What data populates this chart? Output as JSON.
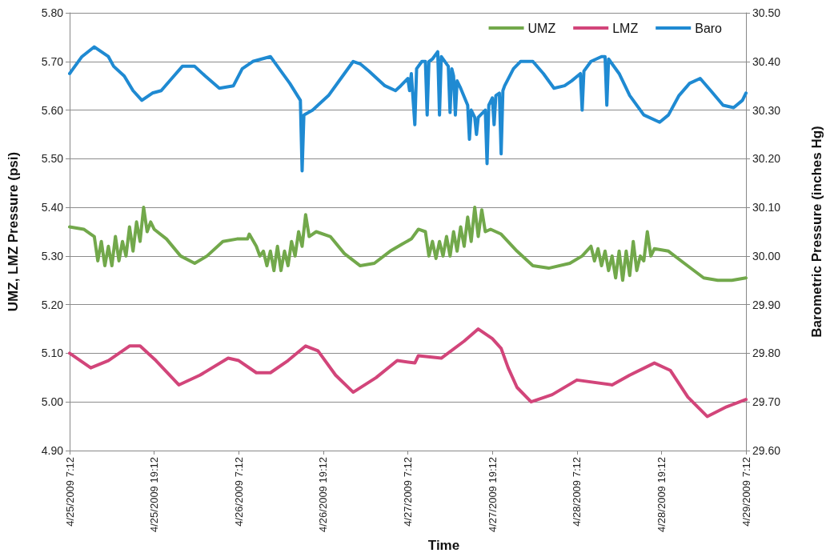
{
  "chart_data": {
    "type": "line",
    "xlabel": "Time",
    "ylabel": "UMZ, LMZ Pressure (psi)",
    "y2label": "Barometric Pressure (inches Hg)",
    "xlim": [
      "2009-04-25T07:12",
      "2009-04-29T07:12"
    ],
    "xticks": [
      {
        "value": "2009-04-25T07:12",
        "label": "4/25/2009 7:12"
      },
      {
        "value": "2009-04-25T19:12",
        "label": "4/25/2009 19:12"
      },
      {
        "value": "2009-04-26T07:12",
        "label": "4/26/2009 7:12"
      },
      {
        "value": "2009-04-26T19:12",
        "label": "4/26/2009 19:12"
      },
      {
        "value": "2009-04-27T07:12",
        "label": "4/27/2009 7:12"
      },
      {
        "value": "2009-04-27T19:12",
        "label": "4/27/2009 19:12"
      },
      {
        "value": "2009-04-28T07:12",
        "label": "4/28/2009 7:12"
      },
      {
        "value": "2009-04-28T19:12",
        "label": "4/28/2009 19:12"
      },
      {
        "value": "2009-04-29T07:12",
        "label": "4/29/2009 7:12"
      }
    ],
    "ylim": [
      4.9,
      5.8
    ],
    "yticks": [
      {
        "value": 4.9,
        "label": "4.90"
      },
      {
        "value": 5.0,
        "label": "5.00"
      },
      {
        "value": 5.1,
        "label": "5.10"
      },
      {
        "value": 5.2,
        "label": "5.20"
      },
      {
        "value": 5.3,
        "label": "5.30"
      },
      {
        "value": 5.4,
        "label": "5.40"
      },
      {
        "value": 5.5,
        "label": "5.50"
      },
      {
        "value": 5.6,
        "label": "5.60"
      },
      {
        "value": 5.7,
        "label": "5.70"
      },
      {
        "value": 5.8,
        "label": "5.80"
      }
    ],
    "y2lim": [
      29.6,
      30.5
    ],
    "y2ticks": [
      {
        "value": 29.6,
        "label": "29.60"
      },
      {
        "value": 29.7,
        "label": "29.70"
      },
      {
        "value": 29.8,
        "label": "29.80"
      },
      {
        "value": 29.9,
        "label": "29.90"
      },
      {
        "value": 30.0,
        "label": "30.00"
      },
      {
        "value": 30.1,
        "label": "30.10"
      },
      {
        "value": 30.2,
        "label": "30.20"
      },
      {
        "value": 30.3,
        "label": "30.30"
      },
      {
        "value": 30.4,
        "label": "30.40"
      },
      {
        "value": 30.5,
        "label": "30.50"
      }
    ],
    "grid": "y",
    "legend": "top right",
    "marker": "none",
    "line_style": "solid",
    "series": [
      {
        "name": "UMZ",
        "color": "#72a84b",
        "x": [
          "2009-04-25T07:12",
          "2009-04-25T09:12",
          "2009-04-25T10:12",
          "2009-04-25T10:42",
          "2009-04-25T11:12",
          "2009-04-25T11:42",
          "2009-04-25T12:12",
          "2009-04-25T12:42",
          "2009-04-25T13:12",
          "2009-04-25T13:42",
          "2009-04-25T14:12",
          "2009-04-25T14:42",
          "2009-04-25T15:12",
          "2009-04-25T15:42",
          "2009-04-25T16:12",
          "2009-04-25T16:42",
          "2009-04-25T17:12",
          "2009-04-25T17:42",
          "2009-04-25T18:12",
          "2009-04-25T18:42",
          "2009-04-25T19:12",
          "2009-04-25T20:57",
          "2009-04-25T22:57",
          "2009-04-26T00:57",
          "2009-04-26T02:42",
          "2009-04-26T04:57",
          "2009-04-26T06:57",
          "2009-04-26T08:27",
          "2009-04-26T08:42",
          "2009-04-26T09:42",
          "2009-04-26T10:12",
          "2009-04-26T10:42",
          "2009-04-26T11:12",
          "2009-04-26T11:42",
          "2009-04-26T12:12",
          "2009-04-26T12:42",
          "2009-04-26T13:12",
          "2009-04-26T13:42",
          "2009-04-26T14:12",
          "2009-04-26T14:42",
          "2009-04-26T15:12",
          "2009-04-26T15:42",
          "2009-04-26T16:12",
          "2009-04-26T16:42",
          "2009-04-26T17:12",
          "2009-04-26T18:12",
          "2009-04-26T20:12",
          "2009-04-26T22:12",
          "2009-04-27T00:27",
          "2009-04-27T02:27",
          "2009-04-27T04:42",
          "2009-04-27T06:27",
          "2009-04-27T07:42",
          "2009-04-27T08:42",
          "2009-04-27T09:42",
          "2009-04-27T10:12",
          "2009-04-27T10:42",
          "2009-04-27T11:12",
          "2009-04-27T11:42",
          "2009-04-27T12:12",
          "2009-04-27T12:42",
          "2009-04-27T13:12",
          "2009-04-27T13:42",
          "2009-04-27T14:12",
          "2009-04-27T14:42",
          "2009-04-27T15:12",
          "2009-04-27T15:42",
          "2009-04-27T16:12",
          "2009-04-27T16:42",
          "2009-04-27T17:12",
          "2009-04-27T17:42",
          "2009-04-27T18:12",
          "2009-04-27T18:57",
          "2009-04-27T20:27",
          "2009-04-27T22:42",
          "2009-04-28T00:57",
          "2009-04-28T03:12",
          "2009-04-28T06:12",
          "2009-04-28T07:57",
          "2009-04-28T09:12",
          "2009-04-28T09:42",
          "2009-04-28T10:12",
          "2009-04-28T10:42",
          "2009-04-28T11:12",
          "2009-04-28T11:42",
          "2009-04-28T12:12",
          "2009-04-28T12:42",
          "2009-04-28T13:12",
          "2009-04-28T13:42",
          "2009-04-28T14:12",
          "2009-04-28T14:42",
          "2009-04-28T15:12",
          "2009-04-28T15:42",
          "2009-04-28T16:12",
          "2009-04-28T16:42",
          "2009-04-28T17:12",
          "2009-04-28T17:42",
          "2009-04-28T18:12",
          "2009-04-28T20:12",
          "2009-04-28T22:27",
          "2009-04-29T01:12",
          "2009-04-29T03:12",
          "2009-04-29T05:12",
          "2009-04-29T07:12"
        ],
        "values": [
          5.36,
          5.355,
          5.345,
          5.34,
          5.29,
          5.33,
          5.28,
          5.32,
          5.28,
          5.34,
          5.29,
          5.33,
          5.3,
          5.36,
          5.31,
          5.37,
          5.33,
          5.4,
          5.35,
          5.37,
          5.355,
          5.335,
          5.3,
          5.285,
          5.3,
          5.33,
          5.335,
          5.335,
          5.345,
          5.32,
          5.3,
          5.31,
          5.28,
          5.31,
          5.27,
          5.32,
          5.27,
          5.31,
          5.28,
          5.33,
          5.3,
          5.35,
          5.32,
          5.385,
          5.34,
          5.35,
          5.34,
          5.305,
          5.28,
          5.285,
          5.31,
          5.325,
          5.335,
          5.355,
          5.35,
          5.3,
          5.33,
          5.295,
          5.33,
          5.3,
          5.34,
          5.3,
          5.35,
          5.31,
          5.36,
          5.32,
          5.38,
          5.33,
          5.4,
          5.34,
          5.395,
          5.35,
          5.355,
          5.345,
          5.31,
          5.28,
          5.275,
          5.285,
          5.3,
          5.32,
          5.29,
          5.315,
          5.28,
          5.31,
          5.27,
          5.3,
          5.255,
          5.31,
          5.25,
          5.31,
          5.26,
          5.33,
          5.27,
          5.3,
          5.29,
          5.35,
          5.3,
          5.315,
          5.31,
          5.285,
          5.255,
          5.25,
          5.25,
          5.255
        ]
      },
      {
        "name": "LMZ",
        "color": "#d2457a",
        "x": [
          "2009-04-25T07:12",
          "2009-04-25T10:12",
          "2009-04-25T12:42",
          "2009-04-25T15:42",
          "2009-04-25T17:12",
          "2009-04-25T19:27",
          "2009-04-25T22:42",
          "2009-04-26T01:42",
          "2009-04-26T05:42",
          "2009-04-26T07:12",
          "2009-04-26T09:42",
          "2009-04-26T11:42",
          "2009-04-26T14:12",
          "2009-04-26T16:42",
          "2009-04-26T18:27",
          "2009-04-26T20:57",
          "2009-04-26T23:27",
          "2009-04-27T02:42",
          "2009-04-27T05:42",
          "2009-04-27T08:12",
          "2009-04-27T08:42",
          "2009-04-27T11:57",
          "2009-04-27T15:12",
          "2009-04-27T17:12",
          "2009-04-27T19:12",
          "2009-04-27T20:27",
          "2009-04-27T21:27",
          "2009-04-27T22:42",
          "2009-04-28T00:42",
          "2009-04-28T03:42",
          "2009-04-28T07:12",
          "2009-04-28T12:12",
          "2009-04-28T14:42",
          "2009-04-28T18:12",
          "2009-04-28T20:27",
          "2009-04-28T22:57",
          "2009-04-29T01:42",
          "2009-04-29T04:27",
          "2009-04-29T07:12"
        ],
        "values": [
          5.1,
          5.07,
          5.085,
          5.115,
          5.115,
          5.085,
          5.035,
          5.055,
          5.09,
          5.085,
          5.06,
          5.06,
          5.085,
          5.115,
          5.105,
          5.055,
          5.02,
          5.05,
          5.085,
          5.08,
          5.095,
          5.09,
          5.125,
          5.15,
          5.13,
          5.11,
          5.07,
          5.03,
          5.0,
          5.015,
          5.045,
          5.035,
          5.055,
          5.08,
          5.065,
          5.01,
          4.97,
          4.99,
          5.005
        ]
      },
      {
        "name": "Baro",
        "color": "#1f8ad2",
        "axis": "y2",
        "x": [
          "2009-04-25T07:12",
          "2009-04-25T07:27",
          "2009-04-25T08:57",
          "2009-04-25T10:42",
          "2009-04-25T12:42",
          "2009-04-25T13:27",
          "2009-04-25T14:57",
          "2009-04-25T16:12",
          "2009-04-25T17:27",
          "2009-04-25T18:57",
          "2009-04-25T20:12",
          "2009-04-25T21:42",
          "2009-04-25T23:12",
          "2009-04-26T00:57",
          "2009-04-26T02:27",
          "2009-04-26T04:27",
          "2009-04-26T06:27",
          "2009-04-26T07:42",
          "2009-04-26T09:12",
          "2009-04-26T11:42",
          "2009-04-26T12:57",
          "2009-04-26T14:27",
          "2009-04-26T15:57",
          "2009-04-26T16:12",
          "2009-04-26T16:27",
          "2009-04-26T17:42",
          "2009-04-26T19:57",
          "2009-04-26T21:57",
          "2009-04-26T23:27",
          "2009-04-27T00:27",
          "2009-04-27T01:42",
          "2009-04-27T03:57",
          "2009-04-27T05:27",
          "2009-04-27T06:12",
          "2009-04-27T07:12",
          "2009-04-27T07:27",
          "2009-04-27T07:42",
          "2009-04-27T08:12",
          "2009-04-27T08:27",
          "2009-04-27T09:12",
          "2009-04-27T09:42",
          "2009-04-27T09:57",
          "2009-04-27T10:12",
          "2009-04-27T10:42",
          "2009-04-27T11:27",
          "2009-04-27T11:42",
          "2009-04-27T11:57",
          "2009-04-27T12:57",
          "2009-04-27T13:12",
          "2009-04-27T13:27",
          "2009-04-27T13:42",
          "2009-04-27T13:57",
          "2009-04-27T14:12",
          "2009-04-27T14:42",
          "2009-04-27T15:42",
          "2009-04-27T15:57",
          "2009-04-27T16:12",
          "2009-04-27T16:42",
          "2009-04-27T16:57",
          "2009-04-27T17:12",
          "2009-04-27T18:12",
          "2009-04-27T18:27",
          "2009-04-27T18:42",
          "2009-04-27T19:12",
          "2009-04-27T19:27",
          "2009-04-27T19:42",
          "2009-04-27T20:12",
          "2009-04-27T20:27",
          "2009-04-27T20:42",
          "2009-04-27T20:57",
          "2009-04-27T22:12",
          "2009-04-27T23:12",
          "2009-04-28T00:57",
          "2009-04-28T02:27",
          "2009-04-28T03:57",
          "2009-04-28T05:27",
          "2009-04-28T06:27",
          "2009-04-28T07:42",
          "2009-04-28T07:57",
          "2009-04-28T08:12",
          "2009-04-28T09:12",
          "2009-04-28T10:42",
          "2009-04-28T11:12",
          "2009-04-28T11:27",
          "2009-04-28T11:42",
          "2009-04-28T13:12",
          "2009-04-28T14:42",
          "2009-04-28T16:42",
          "2009-04-28T18:57",
          "2009-04-28T20:12",
          "2009-04-28T21:42",
          "2009-04-28T23:12",
          "2009-04-29T00:42",
          "2009-04-29T02:12",
          "2009-04-29T03:57",
          "2009-04-29T05:27",
          "2009-04-29T06:42",
          "2009-04-29T07:12"
        ],
        "values": [
          30.375,
          30.38,
          30.41,
          30.43,
          30.41,
          30.39,
          30.37,
          30.34,
          30.32,
          30.335,
          30.34,
          30.365,
          30.39,
          30.39,
          30.37,
          30.345,
          30.35,
          30.385,
          30.4,
          30.41,
          30.385,
          30.355,
          30.32,
          30.175,
          30.29,
          30.3,
          30.33,
          30.37,
          30.4,
          30.395,
          30.38,
          30.35,
          30.34,
          30.35,
          30.365,
          30.34,
          30.375,
          30.27,
          30.385,
          30.4,
          30.4,
          30.29,
          30.4,
          30.405,
          30.42,
          30.29,
          30.41,
          30.39,
          30.295,
          30.385,
          30.37,
          30.29,
          30.36,
          30.345,
          30.31,
          30.24,
          30.3,
          30.285,
          30.25,
          30.285,
          30.3,
          30.19,
          30.31,
          30.325,
          30.27,
          30.33,
          30.335,
          30.21,
          30.34,
          30.35,
          30.385,
          30.4,
          30.4,
          30.375,
          30.345,
          30.35,
          30.36,
          30.375,
          30.3,
          30.38,
          30.4,
          30.41,
          30.41,
          30.31,
          30.405,
          30.375,
          30.33,
          30.29,
          30.275,
          30.29,
          30.33,
          30.355,
          30.365,
          30.34,
          30.31,
          30.305,
          30.32,
          30.335
        ]
      }
    ]
  }
}
